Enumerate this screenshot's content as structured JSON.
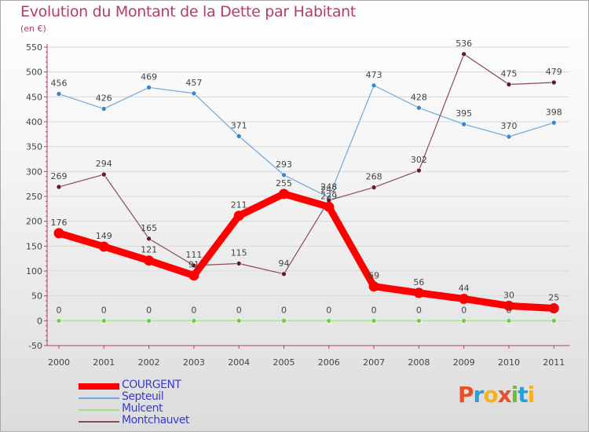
{
  "header": {
    "title": "Evolution du Montant de la Dette par Habitant",
    "subtitle": "(en €)"
  },
  "logo": {
    "text": "Proxiti",
    "colors": [
      "#e8502a",
      "#2aa0d8",
      "#f5b21c",
      "#e8502a",
      "#6abf2e",
      "#2aa0d8",
      "#f5b21c"
    ]
  },
  "chart_data": {
    "type": "line",
    "x": [
      "2000",
      "2001",
      "2002",
      "2003",
      "2004",
      "2005",
      "2006",
      "2007",
      "2008",
      "2009",
      "2010",
      "2011"
    ],
    "ylim": [
      -50,
      550
    ],
    "yticks": [
      -50,
      0,
      50,
      100,
      150,
      200,
      250,
      300,
      350,
      400,
      450,
      500,
      550
    ],
    "grid": "horizontal",
    "legend_position": "bottom-left",
    "series": [
      {
        "name": "COURGENT",
        "values": [
          176,
          149,
          121,
          91,
          211,
          255,
          229,
          69,
          56,
          44,
          30,
          25
        ],
        "color": "#ff0000",
        "marker": "#ff0000"
      },
      {
        "name": "Septeuil",
        "values": [
          456,
          426,
          469,
          457,
          371,
          293,
          248,
          473,
          428,
          395,
          370,
          398
        ],
        "color": "#6fa8dc",
        "marker": "#3a86c8"
      },
      {
        "name": "Mulcent",
        "values": [
          0,
          0,
          0,
          0,
          0,
          0,
          0,
          0,
          0,
          0,
          0,
          0
        ],
        "color": "#9fe08a",
        "marker": "#77c84e"
      },
      {
        "name": "Montchauvet",
        "values": [
          269,
          294,
          165,
          111,
          115,
          94,
          242,
          268,
          302,
          536,
          475,
          479
        ],
        "color": "#8b4a55",
        "marker": "#6b1a22"
      }
    ]
  }
}
